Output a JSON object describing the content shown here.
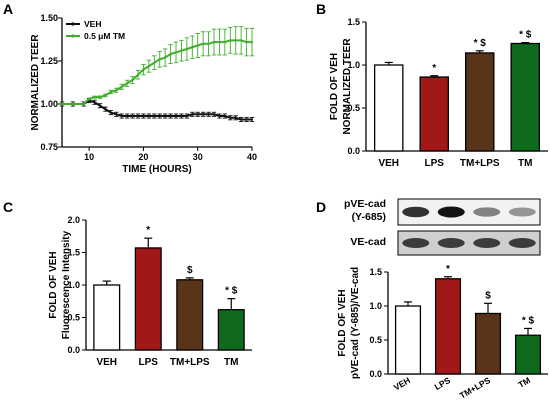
{
  "colors": {
    "veh": "#ffffff",
    "lps": "#a01818",
    "tm_lps": "#5a3418",
    "tm": "#0f6a1e",
    "tm_line": "#3fae2a",
    "veh_line": "#111111"
  },
  "chart_data": [
    {
      "panel": "A",
      "type": "line",
      "xlabel": "TIME (HOURS)",
      "ylabel": "NORMALIZED TEER",
      "xlim": [
        5,
        40
      ],
      "ylim": [
        0.75,
        1.5
      ],
      "xticks": [
        10,
        20,
        30,
        40
      ],
      "yticks": [
        0.75,
        1.0,
        1.25,
        1.5
      ],
      "ytick_labels": [
        "0.75",
        "1.00",
        "1.25",
        "1.50"
      ],
      "legend_position": "top-left",
      "series": [
        {
          "name": "VEH",
          "color": "#111111",
          "x": [
            5,
            7,
            9,
            10,
            11,
            12,
            13,
            14,
            15,
            16,
            17,
            18,
            19,
            20,
            21,
            22,
            23,
            24,
            25,
            26,
            27,
            28,
            29,
            30,
            31,
            32,
            33,
            34,
            35,
            36,
            37,
            38,
            39,
            40
          ],
          "y": [
            1.0,
            1.0,
            1.0,
            1.02,
            1.01,
            0.99,
            0.97,
            0.95,
            0.94,
            0.93,
            0.93,
            0.93,
            0.93,
            0.93,
            0.93,
            0.93,
            0.93,
            0.93,
            0.93,
            0.93,
            0.93,
            0.93,
            0.94,
            0.94,
            0.94,
            0.94,
            0.94,
            0.93,
            0.93,
            0.92,
            0.92,
            0.91,
            0.91,
            0.91
          ],
          "err": 0.012
        },
        {
          "name": "0.5 μM TM",
          "color": "#3fae2a",
          "x": [
            5,
            7,
            9,
            10,
            11,
            12,
            13,
            14,
            15,
            16,
            17,
            18,
            19,
            20,
            21,
            22,
            23,
            24,
            25,
            26,
            27,
            28,
            29,
            30,
            31,
            32,
            33,
            34,
            35,
            36,
            37,
            38,
            39,
            40
          ],
          "y": [
            1.0,
            1.0,
            1.0,
            1.03,
            1.04,
            1.04,
            1.05,
            1.07,
            1.08,
            1.1,
            1.12,
            1.14,
            1.17,
            1.2,
            1.22,
            1.24,
            1.26,
            1.27,
            1.29,
            1.3,
            1.31,
            1.32,
            1.33,
            1.34,
            1.35,
            1.35,
            1.36,
            1.36,
            1.36,
            1.37,
            1.37,
            1.37,
            1.36,
            1.36
          ],
          "err_lo": [
            0,
            0,
            0,
            0.005,
            0.006,
            0.007,
            0.008,
            0.01,
            0.012,
            0.015,
            0.018,
            0.02,
            0.025,
            0.03,
            0.035,
            0.04,
            0.045,
            0.05,
            0.055,
            0.06,
            0.06,
            0.065,
            0.065,
            0.07,
            0.07,
            0.07,
            0.075,
            0.075,
            0.075,
            0.075,
            0.08,
            0.08,
            0.08,
            0.08
          ],
          "err_hi": [
            0,
            0,
            0,
            0.005,
            0.006,
            0.007,
            0.008,
            0.01,
            0.012,
            0.015,
            0.018,
            0.02,
            0.025,
            0.03,
            0.035,
            0.04,
            0.045,
            0.05,
            0.055,
            0.06,
            0.06,
            0.065,
            0.065,
            0.07,
            0.07,
            0.07,
            0.075,
            0.075,
            0.075,
            0.075,
            0.08,
            0.08,
            0.08,
            0.08
          ]
        }
      ]
    },
    {
      "panel": "B",
      "type": "bar",
      "ylabel": [
        "FOLD OF VEH",
        "NORMALIZED TEER"
      ],
      "ylim": [
        0,
        1.5
      ],
      "yticks": [
        0,
        0.5,
        1.0,
        1.5
      ],
      "ytick_labels": [
        "0.0",
        "0.5",
        "1.0",
        "1.5"
      ],
      "categories": [
        "VEH",
        "LPS",
        "TM+LPS",
        "TM"
      ],
      "values": [
        1.0,
        0.86,
        1.14,
        1.25
      ],
      "errors": [
        0.03,
        0.015,
        0.025,
        0.01
      ],
      "annotations": [
        "",
        "*",
        "* $",
        "* $"
      ]
    },
    {
      "panel": "C",
      "type": "bar",
      "ylabel": [
        "FOLD OF VEH",
        "Fluorescence Intensity"
      ],
      "ylim": [
        0,
        2.0
      ],
      "yticks": [
        0,
        0.5,
        1.0,
        1.5,
        2.0
      ],
      "ytick_labels": [
        "0.0",
        "0.5",
        "1.0",
        "1.5",
        "2.0"
      ],
      "categories": [
        "VEH",
        "LPS",
        "TM+LPS",
        "TM"
      ],
      "values": [
        1.0,
        1.57,
        1.08,
        0.62
      ],
      "errors": [
        0.06,
        0.15,
        0.03,
        0.17
      ],
      "annotations": [
        "",
        "*",
        "$",
        "* $"
      ]
    },
    {
      "panel": "D",
      "type": "bar",
      "ylabel": [
        "FOLD OF VEH",
        "pVE-cad (Y-685)/VE-cad"
      ],
      "ylim": [
        0,
        1.5
      ],
      "yticks": [
        0,
        0.5,
        1.0,
        1.5
      ],
      "ytick_labels": [
        "0.0",
        "0.5",
        "1.0",
        "1.5"
      ],
      "categories": [
        "VEH",
        "LPS",
        "TM+LPS",
        "TM"
      ],
      "values": [
        1.0,
        1.4,
        0.89,
        0.57
      ],
      "errors": [
        0.06,
        0.03,
        0.15,
        0.1
      ],
      "annotations": [
        "",
        "*",
        "$",
        "* $"
      ]
    }
  ],
  "panels": {
    "A": {
      "letter": "A"
    },
    "B": {
      "letter": "B"
    },
    "C": {
      "letter": "C"
    },
    "D": {
      "letter": "D",
      "blot_labels": [
        "pVE-cad",
        "(Y-685)",
        "VE-cad"
      ],
      "blot_rows": [
        {
          "name": "pVE-cad (Y-685)",
          "intensity": [
            0.85,
            1.0,
            0.45,
            0.35
          ]
        },
        {
          "name": "VE-cad",
          "intensity": [
            0.8,
            0.8,
            0.8,
            0.8
          ]
        }
      ]
    }
  }
}
